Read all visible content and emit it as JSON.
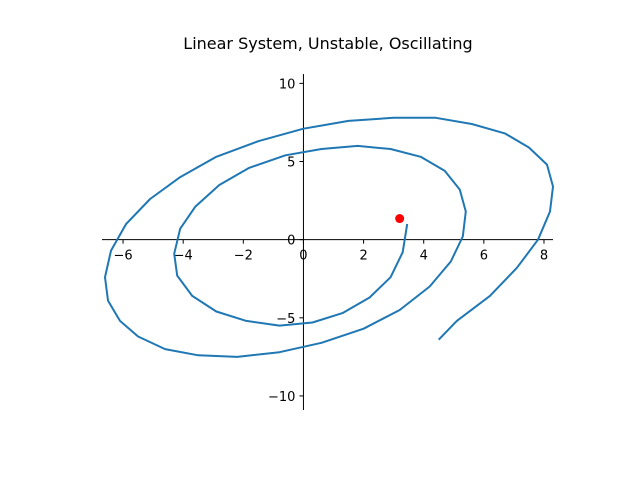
{
  "chart_data": {
    "type": "line",
    "title": "Linear System, Unstable, Oscillating",
    "xlabel": "",
    "ylabel": "",
    "xlim": [
      -6.7,
      8.3
    ],
    "ylim": [
      -10.9,
      10.6
    ],
    "xticks": [
      -6,
      -4,
      -2,
      0,
      2,
      4,
      6,
      8
    ],
    "yticks": [
      -10,
      -5,
      0,
      5,
      10
    ],
    "xtick_labels": [
      "−6",
      "−4",
      "−2",
      "0",
      "2",
      "4",
      "6",
      "8"
    ],
    "ytick_labels": [
      "−10",
      "−5",
      "0",
      "5",
      "10"
    ],
    "grid": false,
    "spines": "centered at origin",
    "series": [
      {
        "color": "#1f77b4",
        "x": [
          3.45,
          3.3,
          2.9,
          2.2,
          1.3,
          0.3,
          -0.8,
          -1.9,
          -2.9,
          -3.7,
          -4.2,
          -4.3,
          -4.1,
          -3.6,
          -2.8,
          -1.8,
          -0.6,
          0.6,
          1.8,
          2.9,
          3.9,
          4.7,
          5.2,
          5.4,
          5.3,
          4.9,
          4.2,
          3.2,
          2.0,
          0.6,
          -0.8,
          -2.2,
          -3.5,
          -4.6,
          -5.5,
          -6.1,
          -6.5,
          -6.6,
          -6.4,
          -5.9,
          -5.1,
          -4.1,
          -2.9,
          -1.5,
          0.0,
          1.5,
          3.0,
          4.4,
          5.6,
          6.7,
          7.5,
          8.1,
          8.3,
          8.2,
          7.8,
          7.1,
          6.2,
          5.1,
          4.5
        ],
        "y": [
          1.0,
          -0.8,
          -2.4,
          -3.7,
          -4.7,
          -5.3,
          -5.5,
          -5.2,
          -4.6,
          -3.6,
          -2.3,
          -0.9,
          0.7,
          2.1,
          3.5,
          4.6,
          5.4,
          5.8,
          6.0,
          5.8,
          5.3,
          4.4,
          3.2,
          1.8,
          0.2,
          -1.4,
          -3.0,
          -4.5,
          -5.7,
          -6.6,
          -7.2,
          -7.5,
          -7.4,
          -7.0,
          -6.2,
          -5.2,
          -3.9,
          -2.4,
          -0.7,
          1.0,
          2.6,
          4.0,
          5.3,
          6.3,
          7.1,
          7.6,
          7.8,
          7.8,
          7.4,
          6.8,
          5.9,
          4.8,
          3.4,
          1.8,
          0.0,
          -1.8,
          -3.6,
          -5.2,
          -6.4
        ]
      }
    ],
    "marker": {
      "x": 3.2,
      "y": 1.35,
      "color": "#ff0000"
    }
  }
}
